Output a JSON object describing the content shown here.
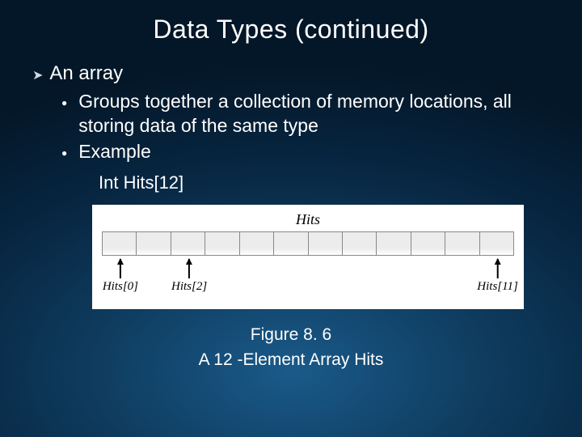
{
  "title": "Data Types (continued)",
  "top_bullet": {
    "marker": "➤",
    "text": "An array"
  },
  "sub_bullets": {
    "items": [
      {
        "marker": "●",
        "text": "Groups together a collection of memory locations, all storing data of the same type"
      },
      {
        "marker": "●",
        "text": "Example"
      }
    ]
  },
  "code_line": "Int Hits[12]",
  "figure": {
    "label": "Hits",
    "cell_count": 12,
    "pointers": [
      {
        "label": "Hits[0]",
        "left_pct": 4.5
      },
      {
        "label": "Hits[2]",
        "left_pct": 21.2
      },
      {
        "label": "Hits[11]",
        "left_pct": 96.0
      }
    ]
  },
  "caption": {
    "line1": "Figure 8. 6",
    "line2": "A 12 -Element Array Hits"
  },
  "colors": {
    "bg_inner": "#1a5a8a",
    "bg_outer": "#041728",
    "text": "#ffffff",
    "figure_bg": "#ffffff",
    "cell_fill": "#ececec",
    "cell_border": "#888888",
    "arrow_color": "#000000"
  }
}
